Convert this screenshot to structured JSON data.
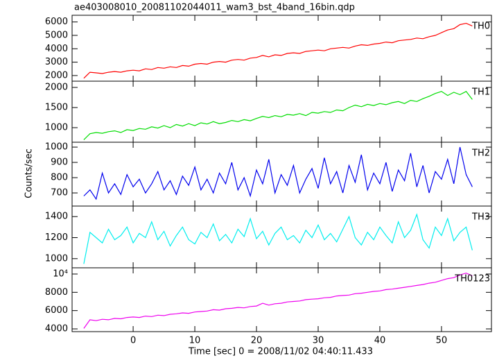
{
  "chart_data": {
    "type": "line",
    "title": "ae403008010_20081102044011_wam3_bst_4band_16bin.qdp",
    "x_label": "Time [sec] 0 = 2008/11/02 04:40:11.433",
    "y_label": "Counts/sec",
    "xlim": [
      -9.9,
      58.1
    ],
    "xticks": [
      0,
      10,
      20,
      30,
      40,
      50
    ],
    "x": [
      -8,
      -7,
      -6,
      -5,
      -4,
      -3,
      -2,
      -1,
      0,
      1,
      2,
      3,
      4,
      5,
      6,
      7,
      8,
      9,
      10,
      11,
      12,
      13,
      14,
      15,
      16,
      17,
      18,
      19,
      20,
      21,
      22,
      23,
      24,
      25,
      26,
      27,
      28,
      29,
      30,
      31,
      32,
      33,
      34,
      35,
      36,
      37,
      38,
      39,
      40,
      41,
      42,
      43,
      44,
      45,
      46,
      47,
      48,
      49,
      50,
      51,
      52,
      53,
      54,
      55
    ],
    "series": [
      {
        "name": "TH0",
        "color": "#ff0000",
        "ylim": [
          1580,
          6500
        ],
        "yticks": [
          2000,
          3000,
          4000,
          5000,
          6000
        ],
        "values": [
          1800,
          2250,
          2200,
          2150,
          2250,
          2300,
          2250,
          2350,
          2400,
          2350,
          2500,
          2450,
          2600,
          2550,
          2650,
          2600,
          2750,
          2700,
          2850,
          2900,
          2850,
          3000,
          3050,
          3000,
          3150,
          3200,
          3150,
          3300,
          3350,
          3500,
          3400,
          3550,
          3500,
          3650,
          3700,
          3650,
          3800,
          3850,
          3900,
          3850,
          4000,
          4050,
          4100,
          4050,
          4200,
          4300,
          4250,
          4350,
          4400,
          4500,
          4450,
          4600,
          4650,
          4700,
          4800,
          4750,
          4900,
          5000,
          5200,
          5400,
          5500,
          5800,
          5900,
          5700
        ]
      },
      {
        "name": "TH1",
        "color": "#00dd00",
        "ylim": [
          638,
          2155
        ],
        "yticks": [
          1000,
          1500,
          2000
        ],
        "values": [
          700,
          850,
          880,
          860,
          900,
          920,
          880,
          950,
          930,
          980,
          960,
          1020,
          990,
          1050,
          1000,
          1080,
          1040,
          1100,
          1050,
          1120,
          1090,
          1150,
          1100,
          1130,
          1180,
          1150,
          1200,
          1170,
          1230,
          1280,
          1250,
          1300,
          1270,
          1330,
          1310,
          1350,
          1300,
          1380,
          1360,
          1400,
          1380,
          1440,
          1420,
          1500,
          1560,
          1520,
          1580,
          1550,
          1600,
          1570,
          1620,
          1650,
          1600,
          1680,
          1650,
          1720,
          1780,
          1850,
          1900,
          1800,
          1880,
          1820,
          1900,
          1700
        ]
      },
      {
        "name": "TH2",
        "color": "#0000ee",
        "ylim": [
          614,
          1032
        ],
        "yticks": [
          700,
          800,
          900,
          1000
        ],
        "values": [
          680,
          720,
          660,
          830,
          700,
          760,
          690,
          820,
          740,
          790,
          700,
          760,
          840,
          720,
          780,
          690,
          810,
          750,
          870,
          720,
          790,
          700,
          830,
          760,
          900,
          720,
          800,
          680,
          850,
          760,
          920,
          700,
          820,
          750,
          880,
          700,
          790,
          860,
          730,
          930,
          760,
          840,
          700,
          880,
          770,
          950,
          720,
          830,
          760,
          900,
          710,
          850,
          780,
          960,
          740,
          880,
          700,
          840,
          790,
          920,
          760,
          1000,
          820,
          740
        ]
      },
      {
        "name": "TH3",
        "color": "#00eeee",
        "ylim": [
          913,
          1500
        ],
        "yticks": [
          1000,
          1200,
          1400
        ],
        "values": [
          950,
          1250,
          1200,
          1150,
          1280,
          1180,
          1220,
          1300,
          1150,
          1240,
          1200,
          1350,
          1180,
          1260,
          1120,
          1220,
          1300,
          1180,
          1140,
          1250,
          1200,
          1330,
          1170,
          1230,
          1150,
          1280,
          1210,
          1380,
          1190,
          1260,
          1130,
          1240,
          1300,
          1180,
          1220,
          1150,
          1270,
          1200,
          1320,
          1180,
          1240,
          1160,
          1280,
          1400,
          1200,
          1130,
          1250,
          1180,
          1300,
          1220,
          1150,
          1350,
          1200,
          1270,
          1420,
          1180,
          1100,
          1300,
          1220,
          1380,
          1170,
          1250,
          1300,
          1080
        ]
      },
      {
        "name": "TH0123",
        "color": "#ee00ee",
        "ylim": [
          3700,
          10680
        ],
        "yticks": [
          4000,
          6000,
          8000,
          {
            "value": 10000,
            "label": "10⁴"
          }
        ],
        "values": [
          4050,
          5000,
          4900,
          5050,
          5000,
          5150,
          5100,
          5250,
          5300,
          5250,
          5400,
          5350,
          5500,
          5450,
          5600,
          5650,
          5750,
          5700,
          5850,
          5900,
          5950,
          6100,
          6050,
          6200,
          6250,
          6350,
          6300,
          6450,
          6500,
          6800,
          6600,
          6750,
          6800,
          6950,
          7000,
          7050,
          7200,
          7250,
          7300,
          7400,
          7450,
          7600,
          7650,
          7700,
          7850,
          7900,
          8000,
          8100,
          8150,
          8300,
          8350,
          8450,
          8550,
          8650,
          8750,
          8850,
          9000,
          9100,
          9300,
          9500,
          9600,
          9900,
          10100,
          9800
        ]
      }
    ]
  }
}
